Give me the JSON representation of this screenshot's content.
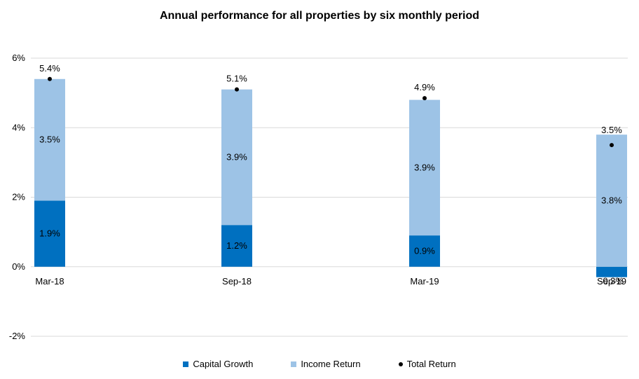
{
  "colors": {
    "capital_growth": "#0070C0",
    "income_return": "#9DC3E6",
    "total_return": "#000000",
    "gridline": "#D9D9D9"
  },
  "chart_data": {
    "type": "bar",
    "stacked": true,
    "title": "Annual performance for all properties by six monthly period",
    "xlabel": "",
    "ylabel": "",
    "categories": [
      "Mar-18",
      "Sep-18",
      "Mar-19",
      "Sep-19"
    ],
    "ylim": [
      -2,
      6
    ],
    "yticks": [
      -2,
      0,
      2,
      4,
      6
    ],
    "ytick_labels": [
      "-2%",
      "0%",
      "2%",
      "4%",
      "6%"
    ],
    "grid": true,
    "legend_position": "bottom",
    "series": [
      {
        "name": "Capital Growth",
        "kind": "bar",
        "values": [
          1.9,
          1.2,
          0.9,
          -0.3
        ],
        "labels": [
          "1.9%",
          "1.2%",
          "0.9%",
          "-0.3%"
        ]
      },
      {
        "name": "Income Return",
        "kind": "bar",
        "values": [
          3.5,
          3.9,
          3.9,
          3.8
        ],
        "labels": [
          "3.5%",
          "3.9%",
          "3.9%",
          "3.8%"
        ]
      },
      {
        "name": "Total Return",
        "kind": "point",
        "values": [
          5.4,
          5.1,
          4.85,
          3.5
        ],
        "labels": [
          "5.4%",
          "5.1%",
          "4.9%",
          "3.5%"
        ]
      }
    ]
  }
}
